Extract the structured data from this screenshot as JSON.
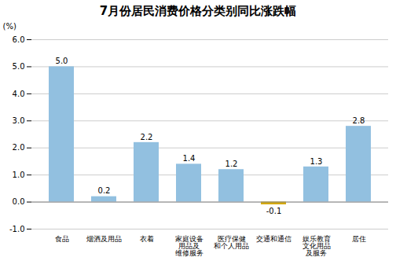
{
  "chart_data": {
    "type": "bar",
    "title": "7月份居民消费价格分类别同比涨跌幅",
    "ylabel": "(%)",
    "categories": [
      "食品",
      "烟酒及用品",
      "衣着",
      "家庭设备\n用品及\n维修服务",
      "医疗保健\n和个人用品",
      "交通和通信",
      "娱乐教育\n文化用品\n及服务",
      "居住"
    ],
    "values": [
      5.0,
      0.2,
      2.2,
      1.4,
      1.2,
      -0.1,
      1.3,
      2.8
    ],
    "value_labels": [
      "5.0",
      "0.2",
      "2.2",
      "1.4",
      "1.2",
      "-0.1",
      "1.3",
      "2.8"
    ],
    "colors": [
      "#92C0E0",
      "#92C0E0",
      "#92C0E0",
      "#92C0E0",
      "#92C0E0",
      "#D4A800",
      "#92C0E0",
      "#92C0E0"
    ],
    "ylim": [
      -1.0,
      6.0
    ],
    "yticks": [
      {
        "value": -1.0,
        "label": "-1.0"
      },
      {
        "value": 0.0,
        "label": "0.0"
      },
      {
        "value": 1.0,
        "label": "1.0"
      },
      {
        "value": 2.0,
        "label": "2.0"
      },
      {
        "value": 3.0,
        "label": "3.0"
      },
      {
        "value": 4.0,
        "label": "4.0"
      },
      {
        "value": 5.0,
        "label": "5.0"
      },
      {
        "value": 6.0,
        "label": "6.0"
      }
    ],
    "grid": true,
    "data_labels": true
  }
}
